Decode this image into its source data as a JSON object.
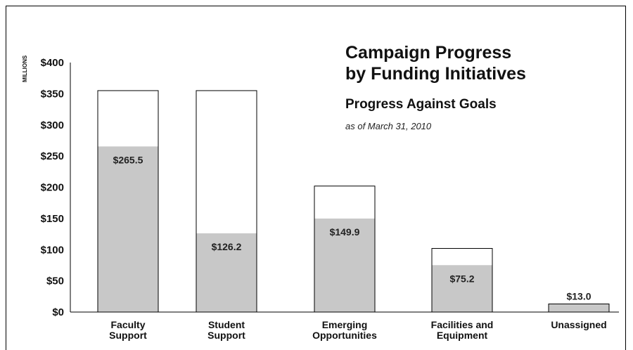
{
  "chart_data": {
    "type": "bar",
    "title_line1": "Campaign Progress",
    "title_line2": "by Funding Initiatives",
    "subtitle": "Progress Against Goals",
    "as_of": "as of March 31, 2010",
    "ylabel": "MILLIONS",
    "ylim": [
      0,
      400
    ],
    "y_ticks": [
      "$0",
      "$50",
      "$100",
      "$150",
      "$200",
      "$250",
      "$300",
      "$350",
      "$400"
    ],
    "categories": [
      [
        "Faculty",
        "Support"
      ],
      [
        "Student",
        "Support"
      ],
      [
        "Emerging",
        "Opportunities"
      ],
      [
        "Facilities and",
        "Equipment"
      ],
      [
        "Unassigned",
        ""
      ]
    ],
    "series": [
      {
        "name": "Goal",
        "values": [
          355,
          355,
          202,
          102,
          13
        ]
      },
      {
        "name": "Progress",
        "values": [
          265.5,
          126.2,
          149.9,
          75.2,
          13.0
        ]
      }
    ],
    "value_labels": [
      "$265.5",
      "$126.2",
      "$149.9",
      "$75.2",
      "$13.0"
    ],
    "colors": {
      "progress": "#c8c8c8",
      "goal": "#ffffff",
      "outline": "#000000"
    },
    "grid": false
  }
}
